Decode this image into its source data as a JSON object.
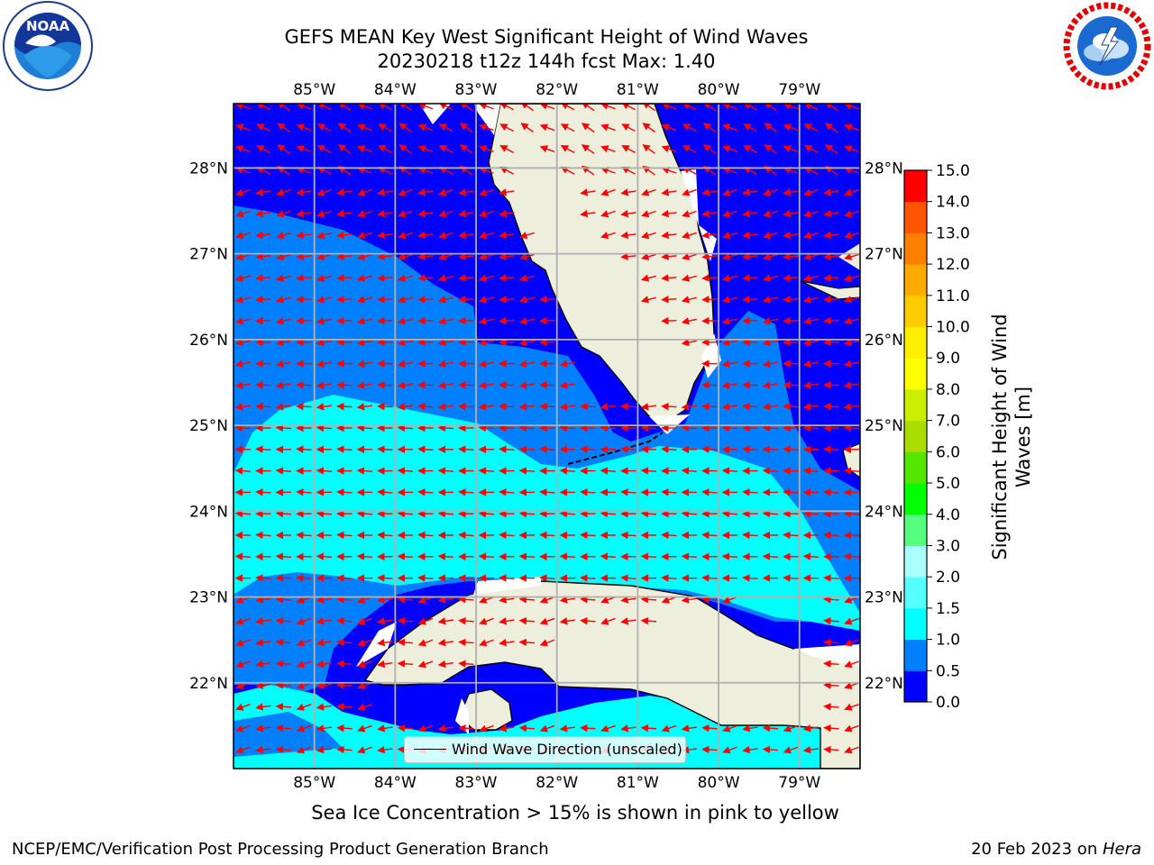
{
  "title": {
    "line1": "GEFS MEAN Key West Significant Height of Wind Waves",
    "line2": "20230218 t12z 144h fcst   Max: 1.40"
  },
  "logos": {
    "left": "noaa-logo",
    "right": "national-weather-service-logo"
  },
  "map": {
    "extent": {
      "lon": [
        -86.0,
        -78.25
      ],
      "lat": [
        21.0,
        28.75
      ]
    },
    "lon_ticks": [
      {
        "value": -85,
        "label": "85°W"
      },
      {
        "value": -84,
        "label": "84°W"
      },
      {
        "value": -83,
        "label": "83°W"
      },
      {
        "value": -82,
        "label": "82°W"
      },
      {
        "value": -81,
        "label": "81°W"
      },
      {
        "value": -80,
        "label": "80°W"
      },
      {
        "value": -79,
        "label": "79°W"
      }
    ],
    "lat_ticks": [
      {
        "value": 28,
        "label": "28°N"
      },
      {
        "value": 27,
        "label": "27°N"
      },
      {
        "value": 26,
        "label": "26°N"
      },
      {
        "value": 25,
        "label": "25°N"
      },
      {
        "value": 24,
        "label": "24°N"
      },
      {
        "value": 23,
        "label": "23°N"
      },
      {
        "value": 22,
        "label": "22°N"
      }
    ],
    "colors": {
      "land": "#eeeedd",
      "grid": "#b0b0b0",
      "arrow": "#ff0000",
      "coast": "#000000"
    },
    "grid": true
  },
  "legend": {
    "label": "Wind Wave Direction (unscaled)"
  },
  "colorbar": {
    "label": "Significant Height of Wind Waves [m]",
    "label_line1": "Significant Height of Wind",
    "label_line2": "Waves [m]",
    "bounds": [
      0.0,
      0.5,
      1.0,
      1.5,
      2.0,
      3.0,
      4.0,
      5.0,
      6.0,
      7.0,
      8.0,
      9.0,
      10.0,
      11.0,
      12.0,
      13.0,
      14.0,
      15.0
    ],
    "tick_labels": [
      "0.0",
      "0.5",
      "1.0",
      "1.5",
      "2.0",
      "3.0",
      "4.0",
      "5.0",
      "6.0",
      "7.0",
      "8.0",
      "9.0",
      "10.0",
      "11.0",
      "12.0",
      "13.0",
      "14.0",
      "15.0"
    ],
    "colors": [
      "#0000ff",
      "#0080ff",
      "#00ffff",
      "#55ffff",
      "#aaffff",
      "#55ff80",
      "#00ff00",
      "#55e600",
      "#aadd00",
      "#ccee00",
      "#ffff00",
      "#ffee00",
      "#ffcc00",
      "#ffaa00",
      "#ff8000",
      "#ff5500",
      "#ff0000"
    ]
  },
  "footnote": "Sea Ice Concentration > 15% is shown in pink to yellow",
  "credits": {
    "left": "NCEP/EMC/Verification Post Processing Product Generation Branch",
    "right_prefix": "20 Feb 2023 on ",
    "right_host": "Hera"
  }
}
